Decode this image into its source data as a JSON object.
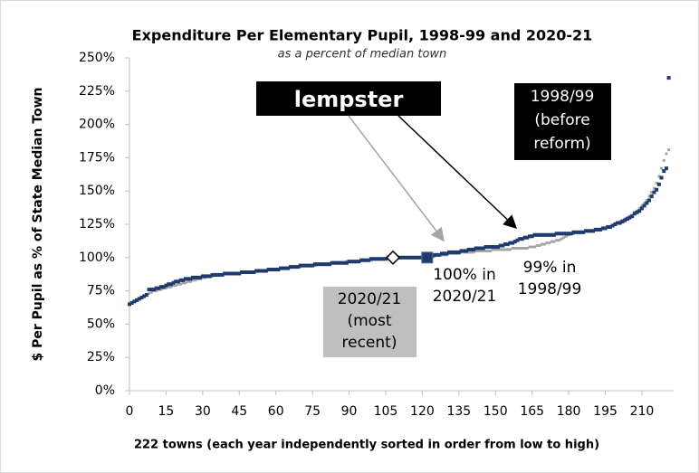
{
  "chart_data": {
    "type": "scatter",
    "title": "Expenditure Per Elementary Pupil, 1998-99 and 2020-21",
    "subtitle": "as a percent of median town",
    "y_label": "$ Per Pupil as % of State Median Town",
    "x_label": "222 towns (each year independently sorted in order from low to high)",
    "xlim": [
      0,
      223
    ],
    "xticks": [
      0,
      15,
      30,
      45,
      60,
      75,
      90,
      105,
      120,
      135,
      150,
      165,
      180,
      195,
      210
    ],
    "ylim": [
      0,
      250
    ],
    "yticks": [
      {
        "value": 0,
        "label": "0%"
      },
      {
        "value": 25,
        "label": "25%"
      },
      {
        "value": 50,
        "label": "50%"
      },
      {
        "value": 75,
        "label": "75%"
      },
      {
        "value": 100,
        "label": "100%"
      },
      {
        "value": 125,
        "label": "125%"
      },
      {
        "value": 150,
        "label": "150%"
      },
      {
        "value": 175,
        "label": "175%"
      },
      {
        "value": 200,
        "label": "200%"
      },
      {
        "value": 225,
        "label": "225%"
      },
      {
        "value": 250,
        "label": "250%"
      }
    ],
    "series": [
      {
        "color": "#a5a5a5",
        "values": [
          65,
          66,
          67,
          68,
          69,
          70,
          71,
          72,
          73,
          74,
          75,
          75,
          76,
          76,
          77,
          77,
          78,
          78,
          79,
          79,
          80,
          80,
          81,
          81,
          82,
          82,
          83,
          83,
          84,
          84,
          85,
          85,
          86,
          86,
          86,
          87,
          87,
          87,
          87,
          88,
          88,
          88,
          88,
          88,
          88,
          88,
          89,
          89,
          89,
          89,
          89,
          89,
          90,
          90,
          90,
          90,
          90,
          91,
          91,
          91,
          91,
          91,
          92,
          92,
          92,
          92,
          93,
          93,
          93,
          93,
          93,
          94,
          94,
          94,
          94,
          94,
          94,
          95,
          95,
          95,
          95,
          95,
          95,
          96,
          96,
          96,
          96,
          96,
          96,
          97,
          97,
          97,
          97,
          97,
          97,
          98,
          98,
          98,
          98,
          98,
          99,
          99,
          99,
          99,
          99,
          99,
          99,
          100,
          100,
          100,
          100,
          100,
          100,
          100,
          100,
          100,
          100,
          100,
          100,
          100,
          100,
          101,
          101,
          101,
          101,
          101,
          102,
          102,
          102,
          102,
          102,
          103,
          103,
          103,
          103,
          103,
          104,
          104,
          104,
          104,
          104,
          104,
          105,
          105,
          105,
          105,
          105,
          105,
          105,
          106,
          106,
          106,
          106,
          106,
          106,
          106,
          106,
          107,
          107,
          107,
          107,
          107,
          107,
          107,
          108,
          108,
          108,
          109,
          109,
          110,
          110,
          111,
          111,
          112,
          112,
          113,
          113,
          114,
          115,
          116,
          117,
          118,
          118,
          119,
          119,
          119,
          119,
          120,
          120,
          120,
          120,
          121,
          121,
          121,
          122,
          122,
          123,
          123,
          124,
          125,
          126,
          127,
          128,
          129,
          130,
          131,
          132,
          134,
          135,
          137,
          139,
          141,
          143,
          146,
          149,
          152,
          156,
          161,
          167,
          173,
          178,
          181
        ]
      },
      {
        "color": "#1f3b6e",
        "values": [
          65,
          66,
          67,
          68,
          69,
          70,
          71,
          72,
          76,
          76,
          76,
          77,
          77,
          78,
          78,
          79,
          80,
          80,
          81,
          82,
          82,
          83,
          83,
          84,
          84,
          84,
          85,
          85,
          85,
          85,
          86,
          86,
          86,
          86,
          87,
          87,
          87,
          87,
          87,
          88,
          88,
          88,
          88,
          88,
          88,
          88,
          89,
          89,
          89,
          89,
          89,
          89,
          90,
          90,
          90,
          90,
          90,
          91,
          91,
          91,
          91,
          91,
          92,
          92,
          92,
          92,
          93,
          93,
          93,
          93,
          94,
          94,
          94,
          94,
          94,
          94,
          95,
          95,
          95,
          95,
          95,
          95,
          95,
          96,
          96,
          96,
          96,
          96,
          96,
          96,
          97,
          97,
          97,
          97,
          97,
          98,
          98,
          98,
          98,
          99,
          99,
          99,
          99,
          99,
          99,
          99,
          100,
          100,
          100,
          100,
          100,
          100,
          100,
          100,
          100,
          100,
          100,
          100,
          100,
          100,
          100,
          100,
          100,
          101,
          101,
          102,
          102,
          102,
          103,
          103,
          103,
          104,
          104,
          104,
          104,
          104,
          105,
          105,
          105,
          106,
          106,
          106,
          107,
          107,
          107,
          107,
          108,
          108,
          108,
          108,
          108,
          108,
          109,
          109,
          110,
          110,
          111,
          111,
          112,
          113,
          114,
          114,
          115,
          115,
          116,
          116,
          117,
          117,
          117,
          117,
          117,
          117,
          117,
          117,
          117,
          118,
          118,
          118,
          118,
          118,
          118,
          118,
          119,
          119,
          119,
          119,
          119,
          120,
          120,
          120,
          120,
          121,
          121,
          121,
          122,
          122,
          123,
          123,
          124,
          125,
          126,
          126,
          127,
          128,
          129,
          130,
          131,
          133,
          134,
          135,
          137,
          139,
          141,
          143,
          146,
          149,
          151,
          155,
          160,
          165,
          167,
          235
        ]
      }
    ],
    "markers": [
      {
        "shape": "diamond",
        "x": 108,
        "y": 100
      },
      {
        "shape": "square",
        "x": 122,
        "y": 100
      }
    ],
    "annotations": [
      {
        "lines": [
          "lempster"
        ]
      },
      {
        "lines": [
          "1998/99",
          "(before",
          "reform)"
        ]
      },
      {
        "lines": [
          "100% in",
          "2020/21"
        ]
      },
      {
        "lines": [
          "99% in",
          "1998/99"
        ]
      },
      {
        "lines": [
          "2020/21",
          "(most",
          "recent)"
        ]
      }
    ]
  }
}
